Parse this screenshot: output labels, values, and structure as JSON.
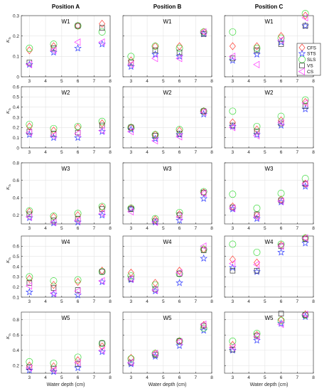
{
  "chart_data": {
    "type": "scatter",
    "column_titles": [
      "Position A",
      "Position B",
      "Position C"
    ],
    "row_titles": [
      "W1",
      "W2",
      "W3",
      "W4",
      "W5"
    ],
    "xlabel": "Water depth (cm)",
    "xlim": [
      2.5,
      8
    ],
    "xticks": [
      3,
      4,
      5,
      6,
      7,
      8
    ],
    "ylabel_symbol": "K",
    "ylabel_subscript": "Ts",
    "rows": [
      {
        "ylim": [
          0,
          0.3
        ],
        "yticks": [
          0,
          0.1,
          0.2,
          0.3
        ]
      },
      {
        "ylim": [
          0,
          0.6
        ],
        "yticks": [
          0,
          0.1,
          0.2,
          0.3,
          0.4,
          0.5,
          0.6
        ]
      },
      {
        "ylim": [
          0.1,
          0.8
        ],
        "yticks": [
          0.2,
          0.4,
          0.6,
          0.8
        ]
      },
      {
        "ylim": [
          0.1,
          0.7
        ],
        "yticks": [
          0.1,
          0.2,
          0.3,
          0.4,
          0.5,
          0.6
        ]
      },
      {
        "ylim": [
          0.1,
          0.9
        ],
        "yticks": [
          0.2,
          0.4,
          0.6,
          0.8
        ]
      }
    ],
    "x": [
      3,
      4.5,
      6,
      7.5
    ],
    "series": [
      {
        "name": "CFS",
        "marker": "diamond",
        "color": "#ff3b30"
      },
      {
        "name": "STS",
        "marker": "star",
        "color": "#2f3cff"
      },
      {
        "name": "SLS",
        "marker": "circle",
        "color": "#3ad93a"
      },
      {
        "name": "VS",
        "marker": "square",
        "color": "#333333"
      },
      {
        "name": "CS",
        "marker": "triangle-left",
        "color": "#ff38ff"
      }
    ],
    "legend_position": "top-right, panel W1 / Position C",
    "grid": true,
    "panels": [
      [
        {
          "CFS": [
            0.13,
            0.15,
            0.25,
            0.26
          ],
          "STS": [
            0.06,
            0.12,
            0.14,
            0.16
          ],
          "SLS": [
            0.14,
            0.16,
            0.25,
            0.22
          ],
          "VS": [
            0.07,
            0.14,
            0.25,
            0.24
          ],
          "CS": [
            0.06,
            0.13,
            0.17,
            0.17
          ]
        },
        {
          "CFS": [
            0.21,
            0.17,
            0.2,
            0.24
          ],
          "STS": [
            0.13,
            0.1,
            0.1,
            0.16
          ],
          "SLS": [
            0.23,
            0.19,
            0.21,
            0.26
          ],
          "VS": [
            0.16,
            0.14,
            0.15,
            0.22
          ],
          "CS": [
            0.15,
            0.12,
            0.14,
            0.17
          ]
        },
        {
          "CFS": [
            0.24,
            0.18,
            0.2,
            0.29
          ],
          "STS": [
            0.17,
            0.11,
            0.12,
            0.2
          ],
          "SLS": [
            0.25,
            0.19,
            0.22,
            0.3
          ],
          "VS": [
            0.21,
            0.14,
            0.16,
            0.27
          ],
          "CS": [
            0.18,
            0.12,
            0.14,
            0.22
          ]
        },
        {
          "CFS": [
            0.28,
            0.22,
            0.25,
            0.36
          ],
          "STS": [
            0.15,
            0.13,
            0.12,
            0.25
          ],
          "SLS": [
            0.3,
            0.26,
            0.27,
            0.35
          ],
          "VS": [
            0.24,
            0.19,
            0.17,
            0.35
          ],
          "CS": [
            0.21,
            0.14,
            0.16,
            0.26
          ]
        },
        {
          "CFS": [
            0.2,
            0.19,
            0.27,
            0.45
          ],
          "STS": [
            0.14,
            0.12,
            0.17,
            0.38
          ],
          "SLS": [
            0.25,
            0.23,
            0.31,
            0.49
          ],
          "VS": [
            0.18,
            0.16,
            0.22,
            0.49
          ],
          "CS": [
            0.17,
            0.14,
            0.24,
            0.4
          ]
        }
      ],
      [
        {
          "CFS": [
            0.08,
            0.15,
            0.15,
            0.22
          ],
          "STS": [
            0.05,
            0.11,
            0.1,
            0.21
          ],
          "SLS": [
            0.1,
            0.15,
            0.14,
            0.22
          ],
          "VS": [
            0.07,
            0.13,
            0.12,
            0.21
          ],
          "CS": [
            0.06,
            0.09,
            0.09,
            0.22
          ]
        },
        {
          "CFS": [
            0.2,
            0.13,
            0.17,
            0.36
          ],
          "STS": [
            0.18,
            0.09,
            0.13,
            0.33
          ],
          "SLS": [
            0.2,
            0.13,
            0.18,
            0.36
          ],
          "VS": [
            0.2,
            0.12,
            0.14,
            0.36
          ],
          "CS": [
            0.16,
            0.07,
            0.11,
            0.35
          ]
        },
        {
          "CFS": [
            0.28,
            0.15,
            0.21,
            0.46
          ],
          "STS": [
            0.27,
            0.12,
            0.14,
            0.39
          ],
          "SLS": [
            0.28,
            0.16,
            0.23,
            0.47
          ],
          "VS": [
            0.27,
            0.13,
            0.2,
            0.46
          ],
          "CS": [
            0.24,
            0.12,
            0.18,
            0.45
          ]
        },
        {
          "CFS": [
            0.34,
            0.24,
            0.36,
            0.57
          ],
          "STS": [
            0.27,
            0.16,
            0.24,
            0.48
          ],
          "SLS": [
            0.31,
            0.22,
            0.33,
            0.57
          ],
          "VS": [
            0.28,
            0.18,
            0.33,
            0.56
          ],
          "CS": [
            0.28,
            0.17,
            0.34,
            0.6
          ]
        },
        {
          "CFS": [
            0.3,
            0.36,
            0.52,
            0.73
          ],
          "STS": [
            0.22,
            0.32,
            0.46,
            0.66
          ],
          "SLS": [
            0.29,
            0.36,
            0.52,
            0.69
          ],
          "VS": [
            0.24,
            0.34,
            0.52,
            0.72
          ],
          "CS": [
            0.24,
            0.36,
            0.51,
            0.74
          ]
        }
      ],
      [
        {
          "CFS": [
            0.15,
            0.15,
            0.2,
            0.3
          ],
          "STS": [
            0.08,
            0.11,
            0.17,
            0.25
          ],
          "SLS": [
            0.22,
            0.14,
            0.19,
            0.31
          ],
          "VS": [
            0.09,
            0.13,
            0.16,
            0.25
          ],
          "CS": [
            0.1,
            0.06,
            0.18,
            0.29
          ]
        },
        {
          "CFS": [
            0.25,
            0.18,
            0.27,
            0.45
          ],
          "STS": [
            0.21,
            0.13,
            0.22,
            0.38
          ],
          "SLS": [
            0.36,
            0.21,
            0.31,
            0.47
          ],
          "VS": [
            0.22,
            0.16,
            0.24,
            0.41
          ],
          "CS": [
            0.2,
            0.12,
            0.25,
            0.44
          ]
        },
        {
          "CFS": [
            0.3,
            0.2,
            0.38,
            0.56
          ],
          "STS": [
            0.27,
            0.16,
            0.35,
            0.53
          ],
          "SLS": [
            0.44,
            0.28,
            0.45,
            0.62
          ],
          "VS": [
            0.29,
            0.21,
            0.37,
            0.56
          ],
          "CS": [
            0.28,
            0.18,
            0.36,
            0.56
          ]
        },
        {
          "CFS": [
            0.47,
            0.44,
            0.61,
            0.68
          ],
          "STS": [
            0.39,
            0.35,
            0.54,
            0.63
          ],
          "SLS": [
            0.62,
            0.54,
            0.62,
            0.68
          ],
          "VS": [
            0.36,
            0.36,
            0.6,
            0.67
          ],
          "CS": [
            0.43,
            0.42,
            0.6,
            0.68
          ]
        },
        {
          "CFS": [
            0.47,
            0.6,
            0.8,
            0.87
          ],
          "STS": [
            0.4,
            0.53,
            0.75,
            0.84
          ],
          "SLS": [
            0.52,
            0.62,
            0.79,
            0.86
          ],
          "VS": [
            0.41,
            0.59,
            0.88,
            0.86
          ],
          "CS": [
            0.44,
            0.58,
            0.74,
            0.87
          ]
        }
      ]
    ]
  }
}
